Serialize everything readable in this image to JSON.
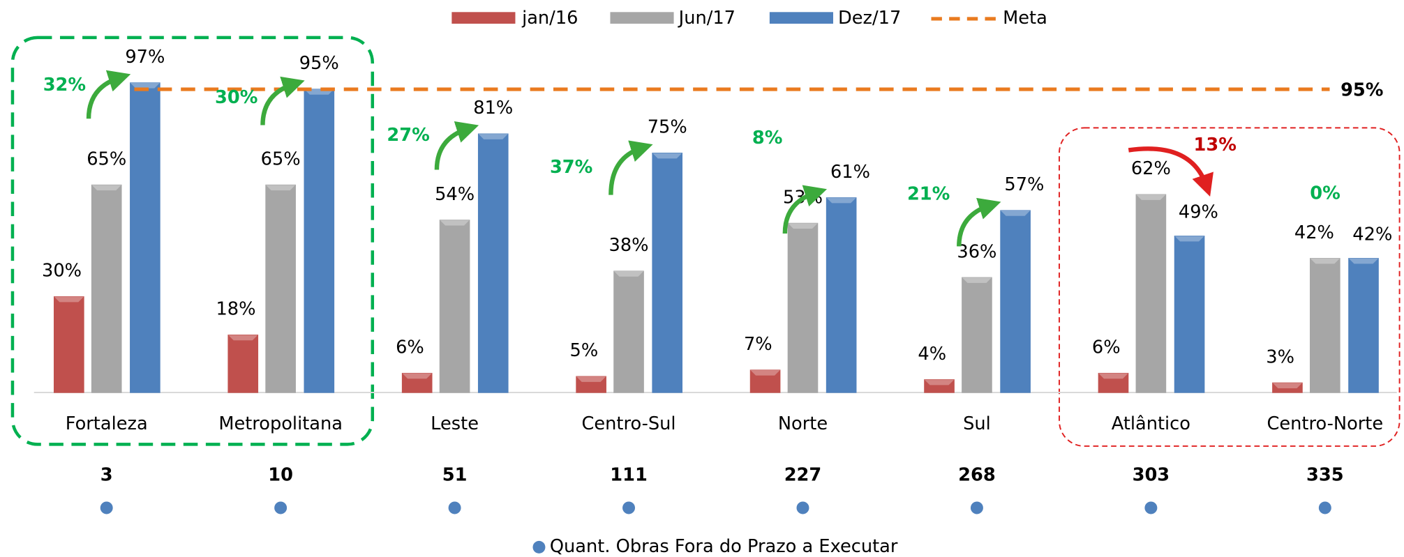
{
  "chart_data": {
    "type": "bar",
    "categories": [
      "Fortaleza",
      "Metropolitana",
      "Leste",
      "Centro-Sul",
      "Norte",
      "Sul",
      "Atlântico",
      "Centro-Norte"
    ],
    "series": [
      {
        "name": "jan/16",
        "color": "#c0504d",
        "values": [
          30,
          18,
          6,
          5,
          7,
          4,
          6,
          3
        ],
        "value_labels": [
          "30%",
          "18%",
          "6%",
          "5%",
          "7%",
          "4%",
          "6%",
          "3%"
        ]
      },
      {
        "name": "Jun/17",
        "color": "#a6a6a6",
        "values": [
          65,
          65,
          54,
          38,
          53,
          36,
          62,
          42
        ],
        "value_labels": [
          "65%",
          "65%",
          "54%",
          "38%",
          "53%",
          "36%",
          "62%",
          "42%"
        ]
      },
      {
        "name": "Dez/17",
        "color": "#4f81bd",
        "values": [
          97,
          95,
          81,
          75,
          61,
          57,
          49,
          42
        ],
        "value_labels": [
          "97%",
          "95%",
          "81%",
          "75%",
          "61%",
          "57%",
          "49%",
          "42%"
        ]
      }
    ],
    "meta": {
      "name": "Meta",
      "value": 95,
      "label": "95%",
      "color": "#e97a1f"
    },
    "changes": [
      {
        "value": 32,
        "label": "32%",
        "color": "#00b050"
      },
      {
        "value": 30,
        "label": "30%",
        "color": "#00b050"
      },
      {
        "value": 27,
        "label": "27%",
        "color": "#00b050"
      },
      {
        "value": 37,
        "label": "37%",
        "color": "#00b050"
      },
      {
        "value": 8,
        "label": "8%",
        "color": "#00b050"
      },
      {
        "value": 21,
        "label": "21%",
        "color": "#00b050"
      },
      {
        "value": 13,
        "label": "13%",
        "color": "#c00000"
      },
      {
        "value": 0,
        "label": "0%",
        "color": "#00b050"
      }
    ],
    "counts": {
      "name": "Quant. Obras Fora do Prazo a Executar",
      "color": "#4f81bd",
      "values": [
        3,
        10,
        51,
        111,
        227,
        268,
        303,
        335
      ]
    },
    "ylim": [
      0,
      100
    ]
  }
}
